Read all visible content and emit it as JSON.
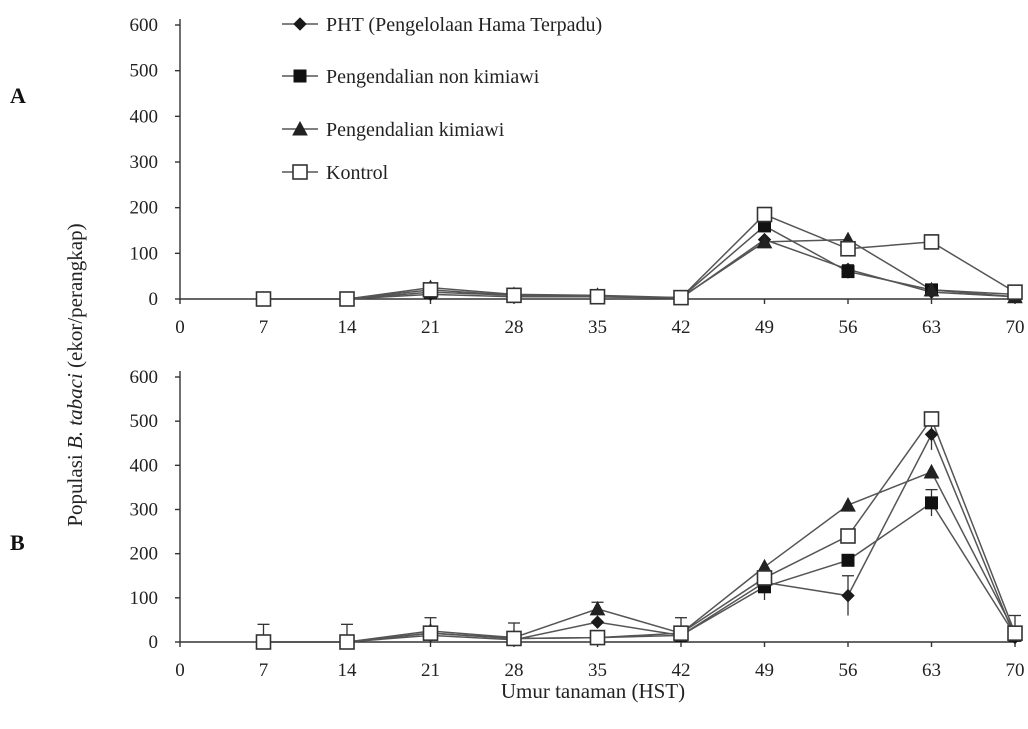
{
  "figure": {
    "y_axis_label_prefix": "Populasi",
    "y_axis_label_italic": "B. tabaci",
    "y_axis_label_suffix": "(ekor/perangkap)",
    "x_axis_label": "Umur tanaman (HST)"
  },
  "legend": [
    {
      "label": "PHT (Pengelolaan Hama Terpadu)",
      "marker": "diamond"
    },
    {
      "label": "Pengendalian non kimiawi",
      "marker": "square-filled"
    },
    {
      "label": "Pengendalian kimiawi",
      "marker": "triangle"
    },
    {
      "label": "Kontrol",
      "marker": "square-open"
    }
  ],
  "chart_data": [
    {
      "type": "line",
      "panel": "A",
      "x": [
        7,
        14,
        21,
        28,
        35,
        42,
        49,
        56,
        63,
        70
      ],
      "x_ticks": [
        0,
        7,
        14,
        21,
        28,
        35,
        42,
        49,
        56,
        63,
        70
      ],
      "y_ticks": [
        0,
        100,
        200,
        300,
        400,
        500,
        600
      ],
      "xlim": [
        0,
        70
      ],
      "ylim": [
        0,
        600
      ],
      "grid": false,
      "legend_position": "top-center",
      "series": [
        {
          "name": "PHT (Pengelolaan Hama Terpadu)",
          "marker": "diamond",
          "values": [
            0,
            0,
            10,
            5,
            5,
            2,
            130,
            65,
            15,
            5
          ]
        },
        {
          "name": "Pengendalian non kimiawi",
          "marker": "square-filled",
          "values": [
            0,
            0,
            15,
            8,
            5,
            3,
            160,
            60,
            20,
            10
          ]
        },
        {
          "name": "Pengendalian kimiawi",
          "marker": "triangle",
          "values": [
            0,
            0,
            25,
            10,
            8,
            3,
            125,
            130,
            20,
            5
          ]
        },
        {
          "name": "Kontrol",
          "marker": "square-open",
          "values": [
            0,
            0,
            20,
            8,
            5,
            3,
            185,
            110,
            125,
            15
          ]
        }
      ],
      "error_bars": [
        {
          "x": 56,
          "y": 60,
          "err": 15
        },
        {
          "x": 63,
          "y": 125,
          "err": 15
        }
      ]
    },
    {
      "type": "line",
      "panel": "B",
      "x": [
        7,
        14,
        21,
        28,
        35,
        42,
        49,
        56,
        63,
        70
      ],
      "x_ticks": [
        0,
        7,
        14,
        21,
        28,
        35,
        42,
        49,
        56,
        63,
        70
      ],
      "y_ticks": [
        0,
        100,
        200,
        300,
        400,
        500,
        600
      ],
      "xlim": [
        0,
        70
      ],
      "ylim": [
        0,
        600
      ],
      "grid": false,
      "series": [
        {
          "name": "PHT (Pengelolaan Hama Terpadu)",
          "marker": "diamond",
          "values": [
            0,
            0,
            15,
            5,
            45,
            15,
            135,
            105,
            470,
            10
          ]
        },
        {
          "name": "Pengendalian non kimiawi",
          "marker": "square-filled",
          "values": [
            0,
            0,
            20,
            8,
            10,
            15,
            125,
            185,
            315,
            15
          ]
        },
        {
          "name": "Pengendalian kimiawi",
          "marker": "triangle",
          "values": [
            0,
            0,
            25,
            10,
            75,
            20,
            170,
            310,
            385,
            20
          ]
        },
        {
          "name": "Kontrol",
          "marker": "square-open",
          "values": [
            0,
            0,
            20,
            8,
            10,
            20,
            145,
            240,
            505,
            20
          ]
        }
      ],
      "error_bars": [
        {
          "x": 7,
          "y": 0,
          "err": 40
        },
        {
          "x": 14,
          "y": 0,
          "err": 40
        },
        {
          "x": 21,
          "y": 20,
          "err": 35
        },
        {
          "x": 28,
          "y": 8,
          "err": 35
        },
        {
          "x": 35,
          "y": 75,
          "err": 15
        },
        {
          "x": 42,
          "y": 20,
          "err": 35
        },
        {
          "x": 49,
          "y": 125,
          "err": 30
        },
        {
          "x": 56,
          "y": 105,
          "err": 45
        },
        {
          "x": 63,
          "y": 315,
          "err": 30
        },
        {
          "x": 63,
          "y": 470,
          "err": 35
        },
        {
          "x": 70,
          "y": 20,
          "err": 40
        }
      ]
    }
  ]
}
